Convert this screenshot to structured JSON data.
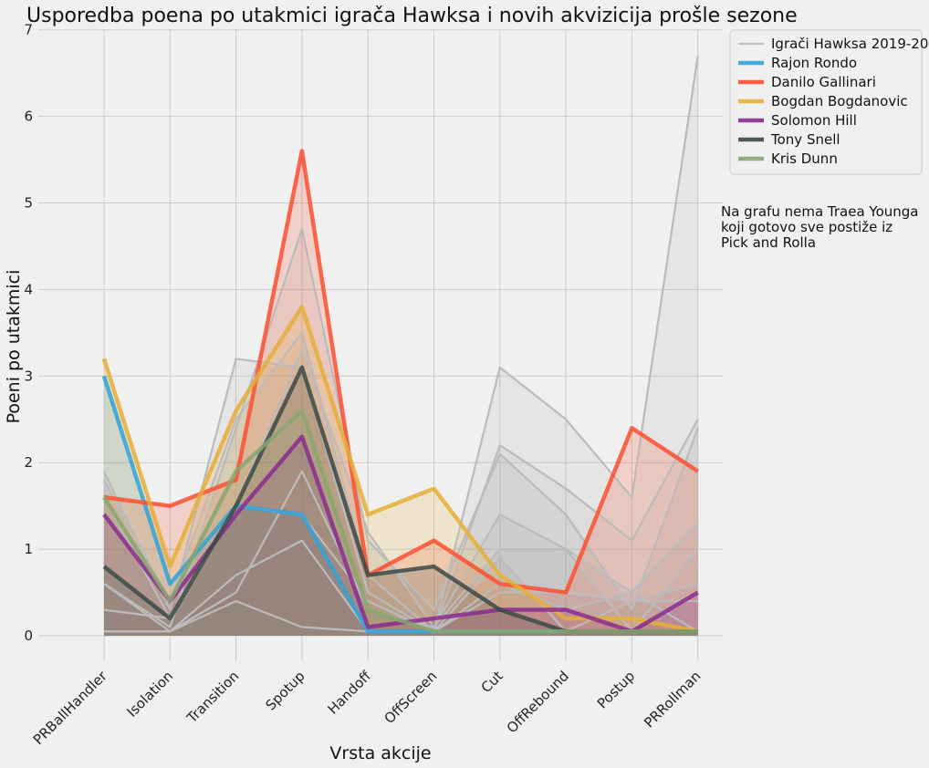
{
  "chart_data": {
    "type": "line",
    "title": "Usporedba poena po utakmici igrača Hawksa i novih akvizicija prošle sezone",
    "xlabel": "Vrsta akcije",
    "ylabel": "Poeni po utakmici",
    "ylim": [
      0,
      7
    ],
    "yticks": [
      0,
      1,
      2,
      3,
      4,
      5,
      6,
      7
    ],
    "grid": true,
    "legend_position": "top-right",
    "note": [
      "Na grafu nema Traea Younga",
      "koji gotovo sve postiže iz",
      "Pick and Rolla"
    ],
    "categories": [
      "PRBallHandler",
      "Isolation",
      "Transition",
      "Spotup",
      "Handoff",
      "OffScreen",
      "Cut",
      "OffRebound",
      "Postup",
      "PRRollman"
    ],
    "background_series": {
      "name": "Igrači Hawksa 2019-20",
      "color": "#bbbbbb",
      "lines": [
        [
          1.9,
          0.3,
          3.2,
          3.1,
          0.5,
          0.05,
          3.1,
          2.5,
          1.6,
          6.7
        ],
        [
          1.8,
          0.4,
          2.5,
          3.5,
          0.7,
          0.05,
          2.2,
          1.7,
          1.1,
          2.5
        ],
        [
          0.6,
          0.1,
          2.4,
          4.7,
          1.1,
          0.3,
          2.1,
          1.4,
          0.3,
          2.4
        ],
        [
          1.6,
          0.2,
          1.5,
          3.3,
          1.2,
          0.1,
          1.4,
          1.0,
          0.5,
          1.3
        ],
        [
          0.6,
          0.05,
          0.5,
          1.9,
          0.3,
          0.1,
          1.0,
          1.0,
          0.05,
          1.0
        ],
        [
          0.3,
          0.2,
          1.5,
          1.4,
          0.4,
          0.05,
          0.9,
          0.05,
          0.4,
          0.6
        ],
        [
          0.05,
          0.05,
          0.7,
          1.1,
          0.05,
          0.05,
          0.6,
          0.3,
          0.5,
          0.05
        ],
        [
          0.05,
          0.05,
          0.4,
          0.1,
          0.05,
          0.05,
          0.5,
          0.5,
          0.4,
          0.4
        ]
      ]
    },
    "series": [
      {
        "name": "Rajon Rondo",
        "color": "#30a2da",
        "values": [
          3.0,
          0.6,
          1.5,
          1.4,
          0.05,
          0.05,
          0.05,
          0.05,
          0.05,
          0.05
        ]
      },
      {
        "name": "Danilo Gallinari",
        "color": "#fc4f30",
        "values": [
          1.6,
          1.5,
          1.8,
          5.6,
          0.7,
          1.1,
          0.6,
          0.5,
          2.4,
          1.9
        ]
      },
      {
        "name": "Bogdan Bogdanovic",
        "color": "#e5ae38",
        "values": [
          3.2,
          0.8,
          2.6,
          3.8,
          1.4,
          1.7,
          0.7,
          0.2,
          0.2,
          0.05
        ]
      },
      {
        "name": "Solomon Hill",
        "color": "#8b2b8f",
        "values": [
          1.4,
          0.4,
          1.4,
          2.3,
          0.1,
          0.2,
          0.3,
          0.3,
          0.05,
          0.5
        ]
      },
      {
        "name": "Tony Snell",
        "color": "#3b4a46",
        "values": [
          0.8,
          0.2,
          1.5,
          3.1,
          0.7,
          0.8,
          0.3,
          0.05,
          0.05,
          0.05
        ]
      },
      {
        "name": "Kris Dunn",
        "color": "#8aa46e",
        "values": [
          1.6,
          0.4,
          1.9,
          2.6,
          0.3,
          0.05,
          0.05,
          0.05,
          0.05,
          0.05
        ]
      }
    ]
  }
}
